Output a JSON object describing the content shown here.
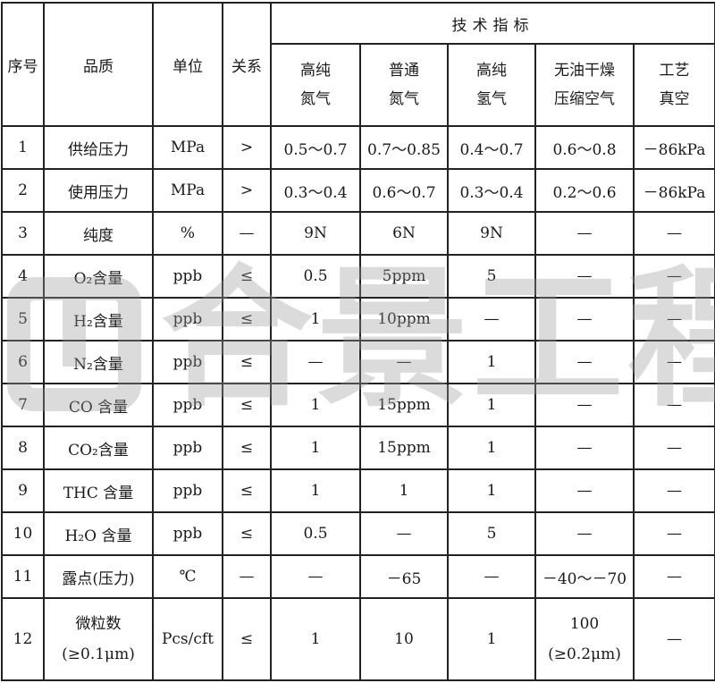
{
  "header": {
    "seq": "序号",
    "quality": "品质",
    "unit": "单位",
    "relation": "关系",
    "group": "技术指标",
    "columns": [
      {
        "line1": "高纯",
        "line2": "氮气"
      },
      {
        "line1": "普通",
        "line2": "氮气"
      },
      {
        "line1": "高纯",
        "line2": "氢气"
      },
      {
        "line1": "无油干燥",
        "line2": "压缩空气"
      },
      {
        "line1": "工艺",
        "line2": "真空"
      }
    ]
  },
  "rows": [
    {
      "seq": "1",
      "quality": "供给压力",
      "unit": "MPa",
      "relation": ">",
      "values": [
        "0.5～0.7",
        "0.7～0.85",
        "0.4～0.7",
        "0.6～0.8",
        "－86kPa"
      ]
    },
    {
      "seq": "2",
      "quality": "使用压力",
      "unit": "MPa",
      "relation": ">",
      "values": [
        "0.3～0.4",
        "0.6～0.7",
        "0.3～0.4",
        "0.2～0.6",
        "－86kPa"
      ]
    },
    {
      "seq": "3",
      "quality": "纯度",
      "unit": "%",
      "relation": "—",
      "values": [
        "9N",
        "6N",
        "9N",
        "—",
        "—"
      ]
    },
    {
      "seq": "4",
      "quality": "O₂含量",
      "unit": "ppb",
      "relation": "≤",
      "values": [
        "0.5",
        "5ppm",
        "5",
        "—",
        "—"
      ]
    },
    {
      "seq": "5",
      "quality": "H₂含量",
      "unit": "ppb",
      "relation": "≤",
      "values": [
        "1",
        "10ppm",
        "—",
        "—",
        "—"
      ]
    },
    {
      "seq": "6",
      "quality": "N₂含量",
      "unit": "ppb",
      "relation": "≤",
      "values": [
        "—",
        "—",
        "1",
        "—",
        "—"
      ]
    },
    {
      "seq": "7",
      "quality": "CO 含量",
      "unit": "ppb",
      "relation": "≤",
      "values": [
        "1",
        "15ppm",
        "1",
        "—",
        "—"
      ]
    },
    {
      "seq": "8",
      "quality": "CO₂含量",
      "unit": "ppb",
      "relation": "≤",
      "values": [
        "1",
        "15ppm",
        "1",
        "—",
        "—"
      ]
    },
    {
      "seq": "9",
      "quality": "THC 含量",
      "unit": "ppb",
      "relation": "≤",
      "values": [
        "1",
        "1",
        "1",
        "—",
        "—"
      ]
    },
    {
      "seq": "10",
      "quality": "H₂O 含量",
      "unit": "ppb",
      "relation": "≤",
      "values": [
        "0.5",
        "—",
        "5",
        "—",
        "—"
      ]
    },
    {
      "seq": "11",
      "quality": "露点(压力)",
      "unit": "℃",
      "relation": "—",
      "values": [
        "—",
        "－65",
        "—",
        "－40～－70",
        "—"
      ]
    }
  ],
  "row12": {
    "seq": "12",
    "quality_line1": "微粒数",
    "quality_line2": "(≥0.1μm)",
    "unit": "Pcs/cft",
    "relation": "≤",
    "values": [
      "1",
      "10",
      "1"
    ],
    "air_line1": "100",
    "air_line2": "(≥0.2μm)",
    "vacuum": "—"
  },
  "watermark": "合景工程"
}
